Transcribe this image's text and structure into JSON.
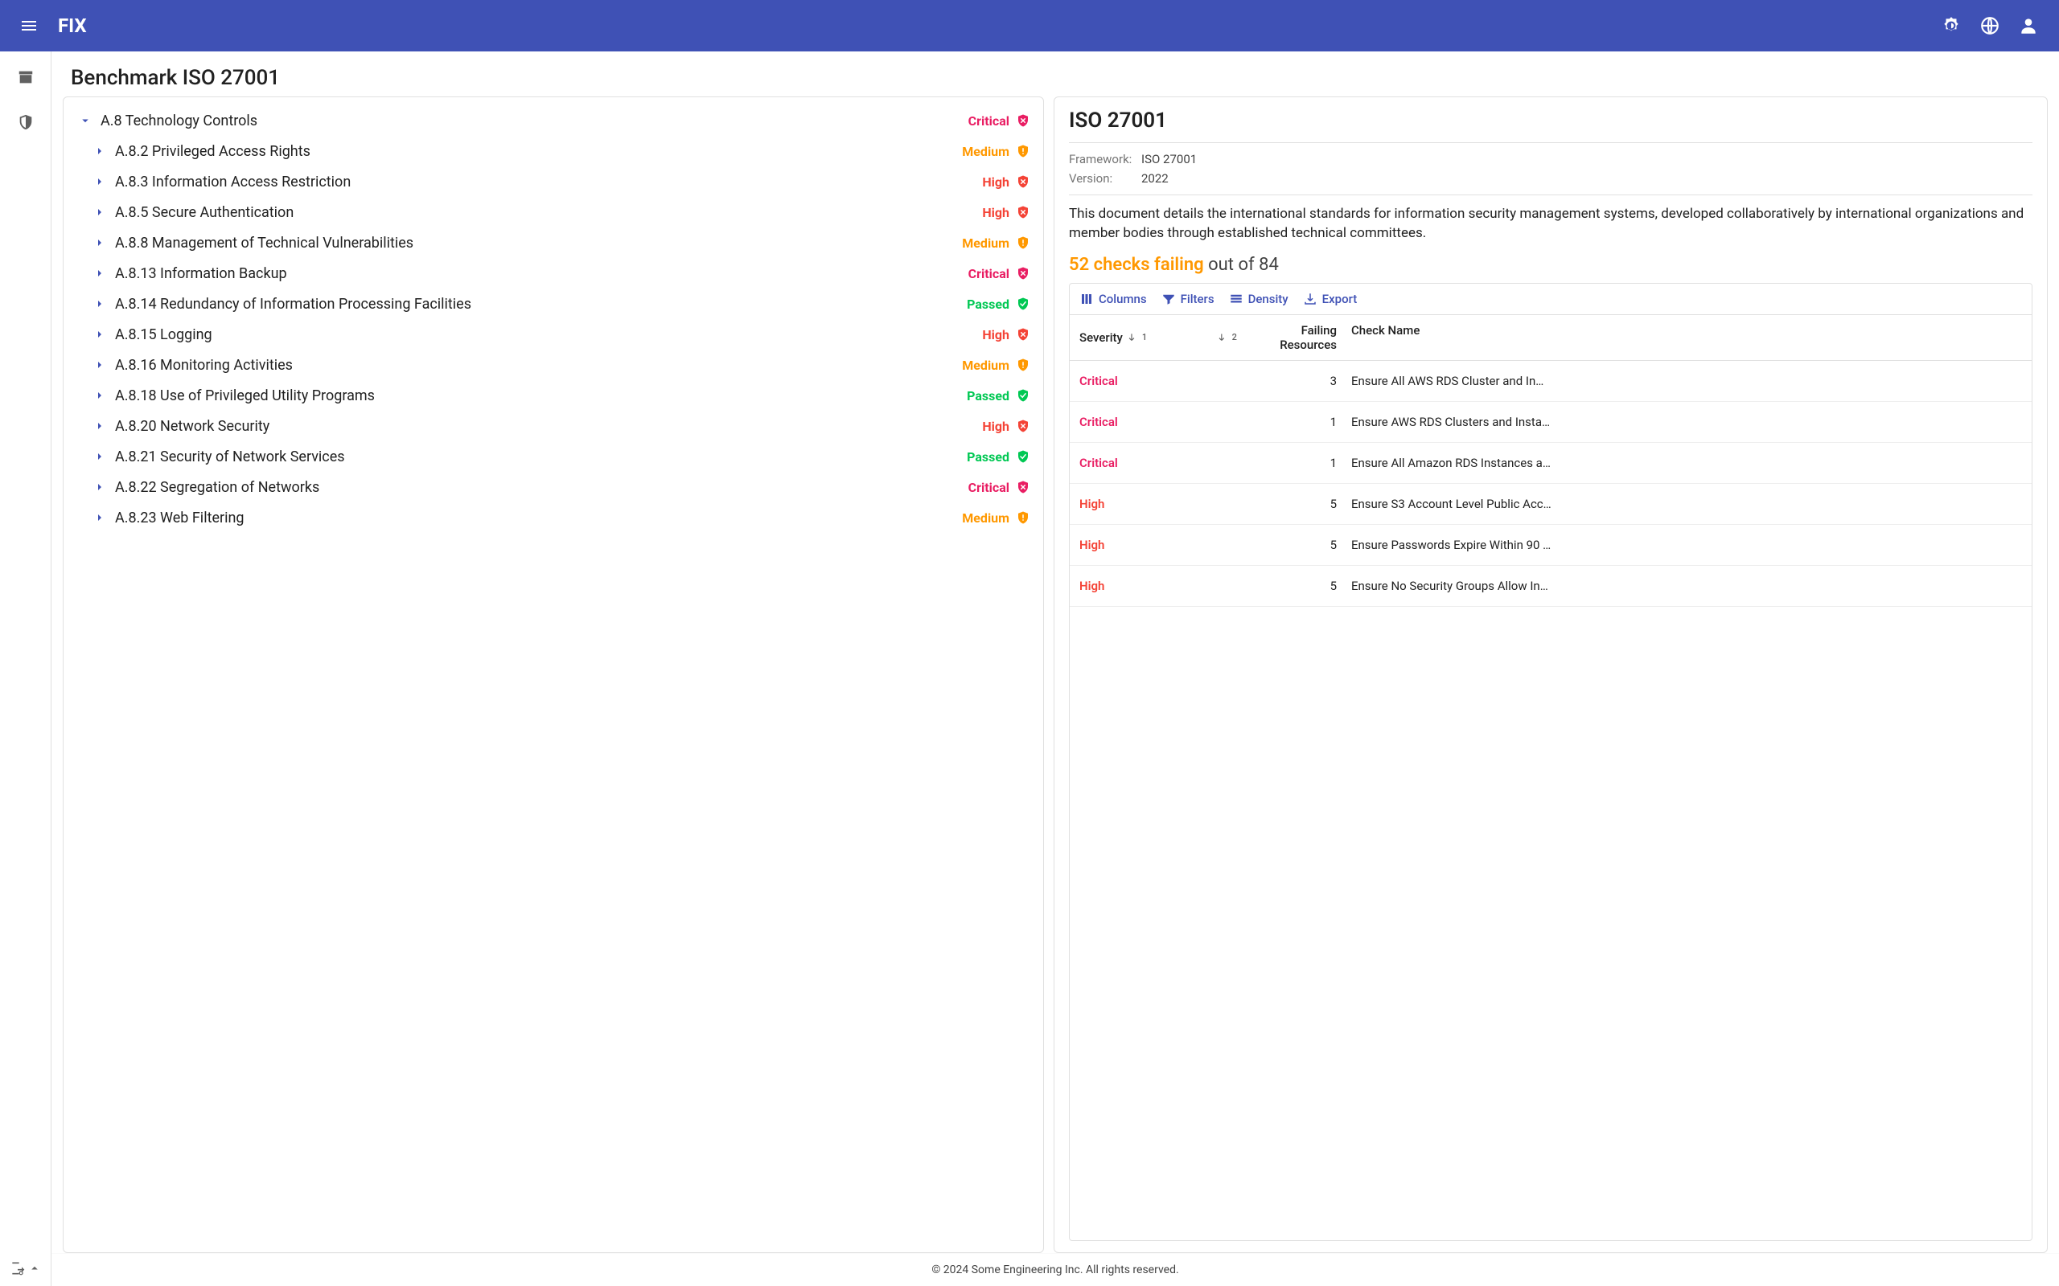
{
  "header": {
    "brand": "FIX"
  },
  "page": {
    "title": "Benchmark ISO 27001"
  },
  "tree": {
    "root": {
      "label": "A.8 Technology Controls",
      "status": "Critical",
      "status_class": "critical",
      "shield": "x"
    },
    "children": [
      {
        "label": "A.8.2 Privileged Access Rights",
        "status": "Medium",
        "status_class": "medium",
        "shield": "bang"
      },
      {
        "label": "A.8.3 Information Access Restriction",
        "status": "High",
        "status_class": "high",
        "shield": "x"
      },
      {
        "label": "A.8.5 Secure Authentication",
        "status": "High",
        "status_class": "high",
        "shield": "x"
      },
      {
        "label": "A.8.8 Management of Technical Vulnerabilities",
        "status": "Medium",
        "status_class": "medium",
        "shield": "bang"
      },
      {
        "label": "A.8.13 Information Backup",
        "status": "Critical",
        "status_class": "critical",
        "shield": "x"
      },
      {
        "label": "A.8.14 Redundancy of Information Processing Facilities",
        "status": "Passed",
        "status_class": "passed",
        "shield": "check"
      },
      {
        "label": "A.8.15 Logging",
        "status": "High",
        "status_class": "high",
        "shield": "x"
      },
      {
        "label": "A.8.16 Monitoring Activities",
        "status": "Medium",
        "status_class": "medium",
        "shield": "bang"
      },
      {
        "label": "A.8.18 Use of Privileged Utility Programs",
        "status": "Passed",
        "status_class": "passed",
        "shield": "check"
      },
      {
        "label": "A.8.20 Network Security",
        "status": "High",
        "status_class": "high",
        "shield": "x"
      },
      {
        "label": "A.8.21 Security of Network Services",
        "status": "Passed",
        "status_class": "passed",
        "shield": "check"
      },
      {
        "label": "A.8.22 Segregation of Networks",
        "status": "Critical",
        "status_class": "critical",
        "shield": "x"
      },
      {
        "label": "A.8.23 Web Filtering",
        "status": "Medium",
        "status_class": "medium",
        "shield": "bang"
      }
    ]
  },
  "detail": {
    "title": "ISO 27001",
    "meta": {
      "framework_label": "Framework:",
      "framework_value": "ISO 27001",
      "version_label": "Version:",
      "version_value": "2022"
    },
    "description": "This document details the international standards for information security management systems, developed collaboratively by international organizations and member bodies through established technical committees.",
    "failing_text": "52 checks failing",
    "outof_text": " out of 84"
  },
  "toolbar": {
    "columns": "Columns",
    "filters": "Filters",
    "density": "Density",
    "export": "Export"
  },
  "grid": {
    "head": {
      "severity": "Severity",
      "failing": "Failing Resources",
      "check": "Check Name"
    },
    "rows": [
      {
        "severity": "Critical",
        "sev_class": "critical",
        "failing": 3,
        "check": "Ensure All AWS RDS Cluster and In…"
      },
      {
        "severity": "Critical",
        "sev_class": "critical",
        "failing": 1,
        "check": "Ensure AWS RDS Clusters and Insta…"
      },
      {
        "severity": "Critical",
        "sev_class": "critical",
        "failing": 1,
        "check": "Ensure All Amazon RDS Instances a…"
      },
      {
        "severity": "High",
        "sev_class": "high",
        "failing": 5,
        "check": "Ensure S3 Account Level Public Acc…"
      },
      {
        "severity": "High",
        "sev_class": "high",
        "failing": 5,
        "check": "Ensure Passwords Expire Within 90 …"
      },
      {
        "severity": "High",
        "sev_class": "high",
        "failing": 5,
        "check": "Ensure No Security Groups Allow In…"
      }
    ]
  },
  "colors": {
    "primary": "#3f51b5",
    "critical": "#e91e63",
    "high": "#f44336",
    "medium": "#ff9800",
    "passed": "#00c853"
  },
  "footer": {
    "text": "© 2024 Some Engineering Inc. All rights reserved."
  }
}
